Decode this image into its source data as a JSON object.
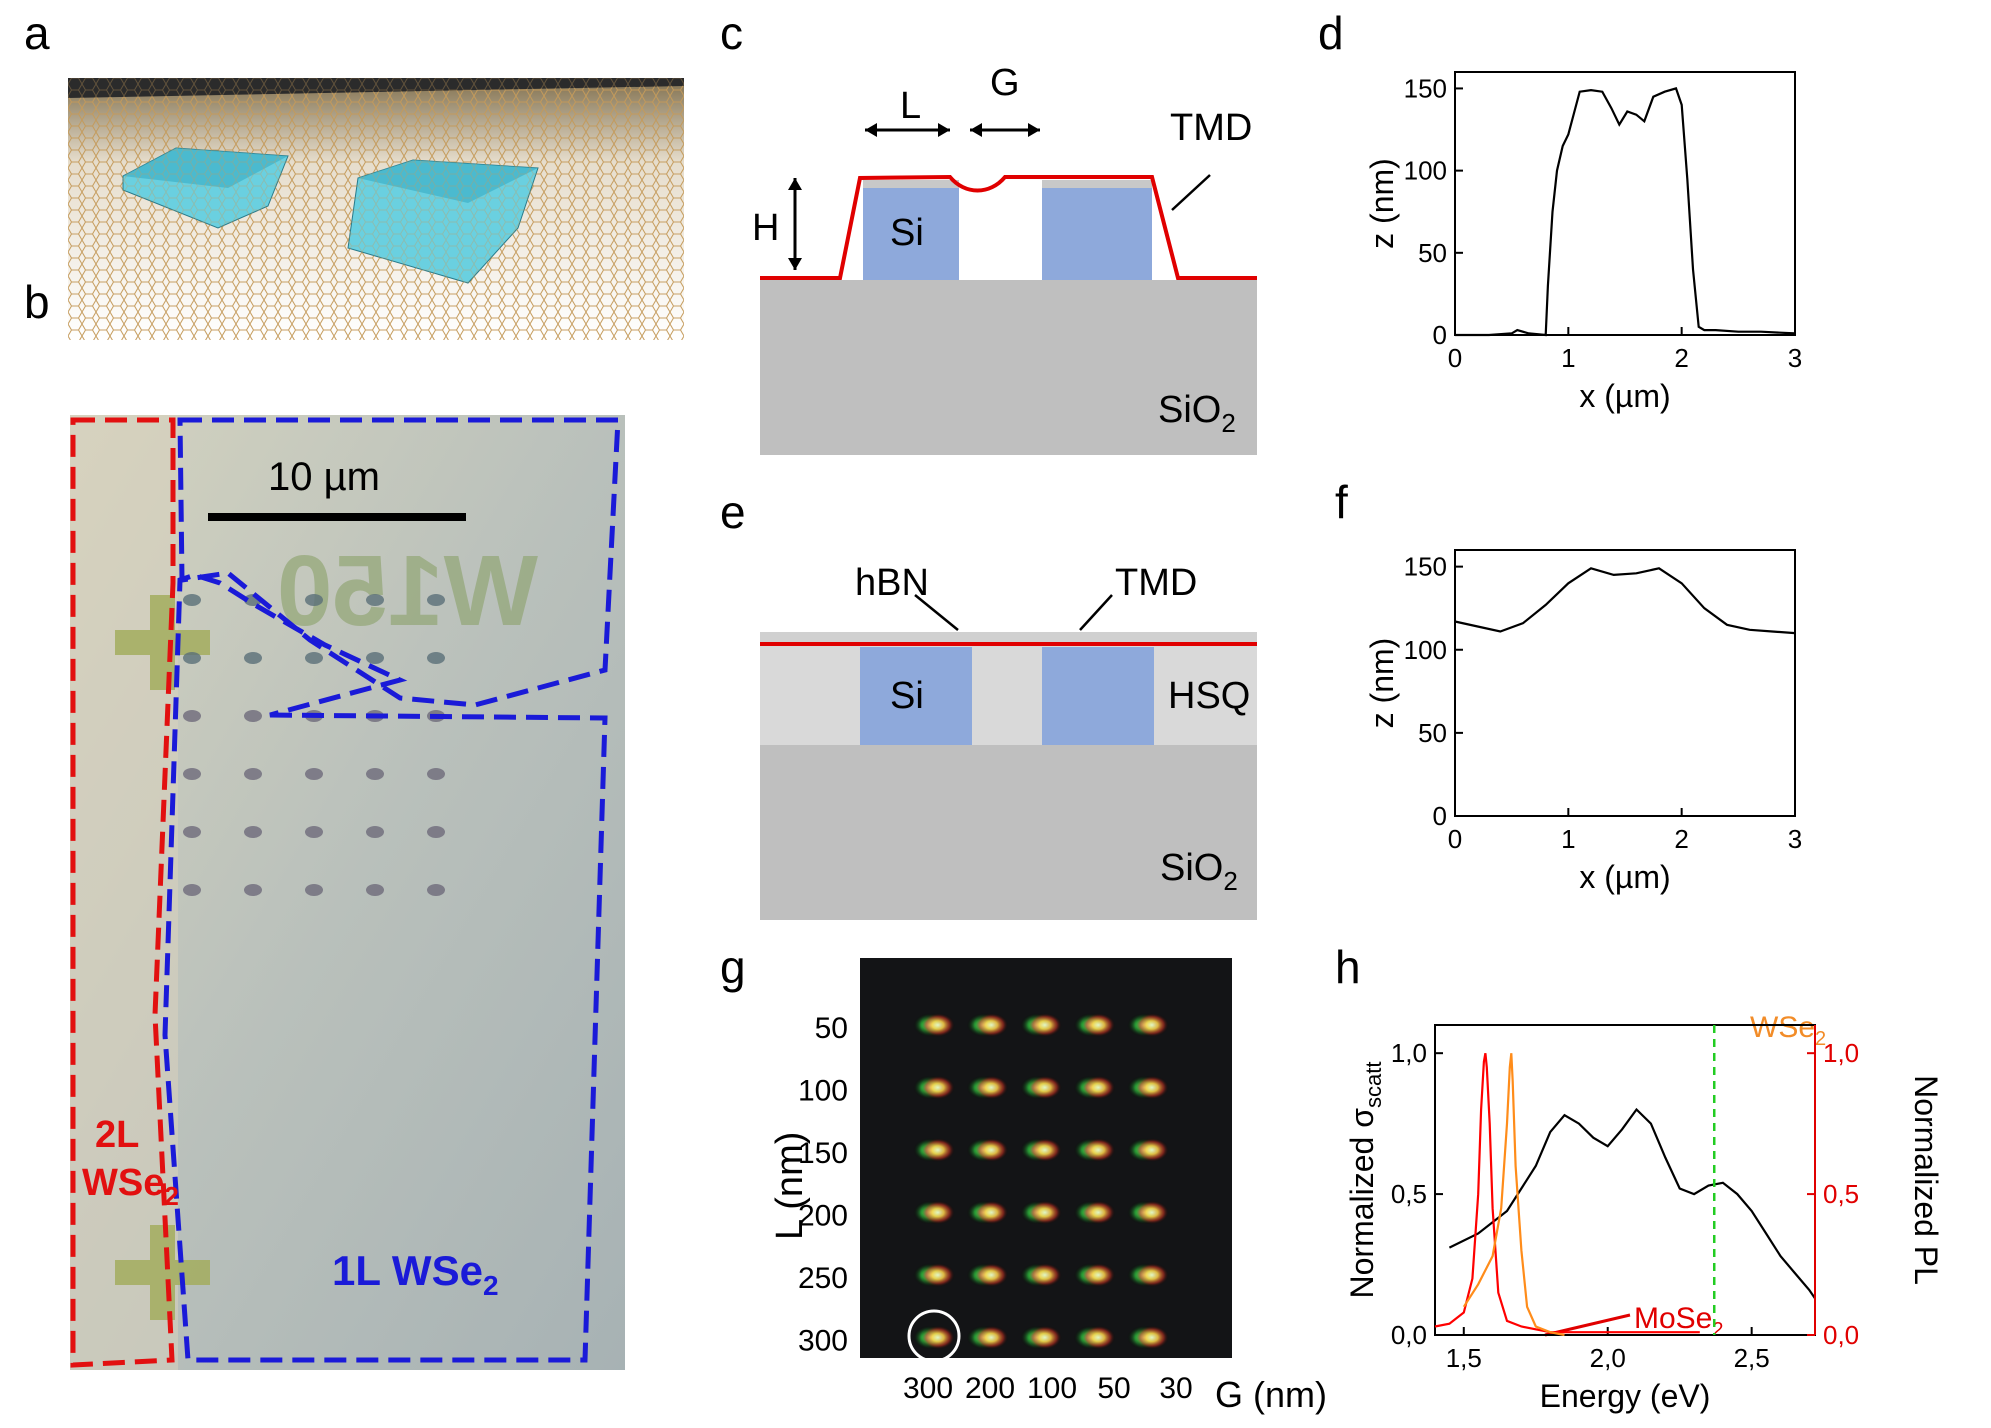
{
  "panels": {
    "a": {
      "letter": "a"
    },
    "b": {
      "letter": "b",
      "scale_bar": "10 µm",
      "label_2L_line1": "2L",
      "label_2L_line2": "WSe",
      "label_2L_sub": "2",
      "label_1L": "1L WSe",
      "label_1L_sub": "2",
      "marker_text": "W150"
    },
    "c": {
      "letter": "c",
      "L": "L",
      "G": "G",
      "H": "H",
      "TMD": "TMD",
      "Si": "Si",
      "SiO": "SiO",
      "SiO_sub": "2"
    },
    "e": {
      "letter": "e",
      "hBN": "hBN",
      "TMD": "TMD",
      "Si": "Si",
      "HSQ": "HSQ",
      "SiO": "SiO",
      "SiO_sub": "2"
    },
    "g": {
      "letter": "g",
      "row_labels": [
        "50",
        "100",
        "150",
        "200",
        "250",
        "300"
      ],
      "col_labels": [
        "300",
        "200",
        "100",
        "50",
        "30"
      ],
      "y_title": "L (nm)",
      "x_title": "G (nm)"
    },
    "d": {
      "letter": "d"
    },
    "f": {
      "letter": "f"
    },
    "h": {
      "letter": "h",
      "wse2": "WSe",
      "wse2_sub": "2",
      "mose2": "MoSe",
      "mose2_sub": "2"
    }
  },
  "chart_data": [
    {
      "id": "d",
      "type": "line",
      "xlabel": "x (µm)",
      "ylabel": "z (nm)",
      "xlim": [
        0,
        3
      ],
      "ylim": [
        0,
        160
      ],
      "xticks": [
        "0",
        "1",
        "2",
        "3"
      ],
      "yticks": [
        "0",
        "50",
        "100",
        "150"
      ],
      "x": [
        0,
        0.3,
        0.5,
        0.55,
        0.65,
        0.8,
        0.82,
        0.86,
        0.9,
        0.95,
        1.0,
        1.05,
        1.1,
        1.2,
        1.3,
        1.38,
        1.45,
        1.52,
        1.6,
        1.67,
        1.75,
        1.85,
        1.95,
        2.0,
        2.05,
        2.1,
        2.15,
        2.2,
        2.3,
        2.5,
        2.7,
        3.0
      ],
      "y": [
        0,
        0,
        1,
        3,
        1,
        0,
        30,
        75,
        100,
        115,
        122,
        135,
        148,
        149,
        148,
        138,
        128,
        136,
        134,
        130,
        145,
        148,
        150,
        140,
        95,
        40,
        5,
        3,
        3,
        2,
        2,
        1
      ]
    },
    {
      "id": "f",
      "type": "line",
      "xlabel": "x (µm)",
      "ylabel": "z (nm)",
      "xlim": [
        0,
        3
      ],
      "ylim": [
        0,
        160
      ],
      "xticks": [
        "0",
        "1",
        "2",
        "3"
      ],
      "yticks": [
        "0",
        "50",
        "100",
        "150"
      ],
      "x": [
        0,
        0.2,
        0.4,
        0.6,
        0.8,
        1.0,
        1.2,
        1.4,
        1.6,
        1.8,
        2.0,
        2.2,
        2.4,
        2.6,
        2.8,
        3.0
      ],
      "y": [
        117,
        114,
        111,
        116,
        127,
        140,
        149,
        145,
        146,
        149,
        140,
        125,
        115,
        112,
        111,
        110
      ]
    },
    {
      "id": "h",
      "type": "line",
      "xlabel": "Energy (eV)",
      "ylabel": "Normalized σ",
      "ylabel_sub": "scatt",
      "ylabel_right": "Normalized PL",
      "xlim": [
        1.4,
        2.72
      ],
      "ylim": [
        0,
        1.1
      ],
      "xticks": [
        "1,5",
        "2,0",
        "2,5"
      ],
      "yticks": [
        "0,0",
        "0,5",
        "1,0"
      ],
      "yticks_right": [
        "0,0",
        "0,5",
        "1,0"
      ],
      "vline_x": 2.37,
      "series": [
        {
          "name": "scattering",
          "color": "#000000",
          "x": [
            1.45,
            1.55,
            1.65,
            1.75,
            1.8,
            1.85,
            1.9,
            1.95,
            2.0,
            2.05,
            2.1,
            2.15,
            2.2,
            2.25,
            2.3,
            2.35,
            2.4,
            2.45,
            2.5,
            2.55,
            2.6,
            2.65,
            2.7,
            2.72
          ],
          "y": [
            0.31,
            0.36,
            0.44,
            0.6,
            0.72,
            0.78,
            0.75,
            0.7,
            0.67,
            0.73,
            0.8,
            0.75,
            0.63,
            0.52,
            0.5,
            0.53,
            0.54,
            0.5,
            0.44,
            0.36,
            0.28,
            0.22,
            0.16,
            0.13
          ]
        },
        {
          "name": "MoSe2 PL",
          "color": "#ff0000",
          "x": [
            1.4,
            1.45,
            1.5,
            1.53,
            1.55,
            1.56,
            1.57,
            1.575,
            1.58,
            1.59,
            1.6,
            1.62,
            1.65,
            1.7,
            1.8,
            2.0,
            2.2,
            2.32
          ],
          "y": [
            0.03,
            0.04,
            0.08,
            0.2,
            0.5,
            0.8,
            0.97,
            1.0,
            0.95,
            0.75,
            0.45,
            0.15,
            0.05,
            0.03,
            0.01,
            0.01,
            0.01,
            0.01
          ]
        },
        {
          "name": "WSe2 PL",
          "color": "#ff8c1a",
          "x": [
            1.5,
            1.55,
            1.6,
            1.63,
            1.65,
            1.66,
            1.665,
            1.67,
            1.68,
            1.7,
            1.72,
            1.75,
            1.8,
            1.85
          ],
          "y": [
            0.1,
            0.18,
            0.28,
            0.45,
            0.75,
            0.95,
            1.0,
            0.9,
            0.6,
            0.3,
            0.1,
            0.03,
            0.01,
            0.0
          ]
        }
      ]
    }
  ]
}
